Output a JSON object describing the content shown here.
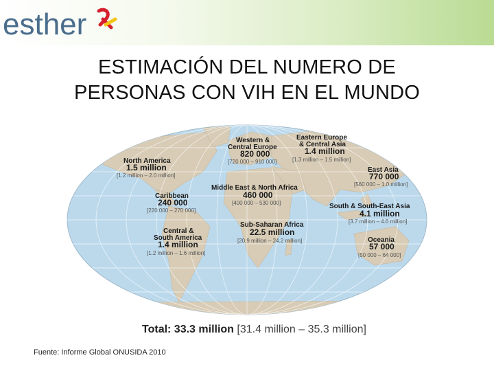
{
  "header": {
    "logo_text": "esther"
  },
  "title": {
    "line1": "ESTIMACIÓN DEL NUMERO DE",
    "line2": "PERSONAS CON VIH EN EL MUNDO"
  },
  "regions": [
    {
      "name1": "North America",
      "name2": "",
      "value": "1.5 million",
      "range": "[1.2 million – 2.0 million]"
    },
    {
      "name1": "Western &",
      "name2": "Central Europe",
      "value": "820 000",
      "range": "[720 000 – 910 000]"
    },
    {
      "name1": "Eastern Europe",
      "name2": "& Central Asia",
      "value": "1.4 million",
      "range": "[1.3 million – 1.5 million]"
    },
    {
      "name1": "East Asia",
      "name2": "",
      "value": "770 000",
      "range": "[560 000 – 1.0 million]"
    },
    {
      "name1": "Middle East & North Africa",
      "name2": "",
      "value": "460 000",
      "range": "[400 000 – 530 000]"
    },
    {
      "name1": "Caribbean",
      "name2": "",
      "value": "240 000",
      "range": "[220 000 – 270 000]"
    },
    {
      "name1": "South & South-East Asia",
      "name2": "",
      "value": "4.1 million",
      "range": "[3.7 million – 4.6 million]"
    },
    {
      "name1": "Sub-Saharan Africa",
      "name2": "",
      "value": "22.5 million",
      "range": "[20.9 million – 24.2 million]"
    },
    {
      "name1": "Central &",
      "name2": "South America",
      "value": "1.4 million",
      "range": "[1.2 million – 1.6 million]"
    },
    {
      "name1": "Oceania",
      "name2": "",
      "value": "57 000",
      "range": "[50 000 – 64 000]"
    }
  ],
  "total": {
    "label": "Total: 33.3 million",
    "range": "[31.4 million – 35.3 million]"
  },
  "source": "Fuente: Informe Global ONUSIDA 2010",
  "colors": {
    "ocean": "#bcd9ec",
    "land": "#d8ccb6",
    "header_green": "#b9db93",
    "logo_blue": "#4a6d8c",
    "ribbon_red": "#d6202d"
  }
}
